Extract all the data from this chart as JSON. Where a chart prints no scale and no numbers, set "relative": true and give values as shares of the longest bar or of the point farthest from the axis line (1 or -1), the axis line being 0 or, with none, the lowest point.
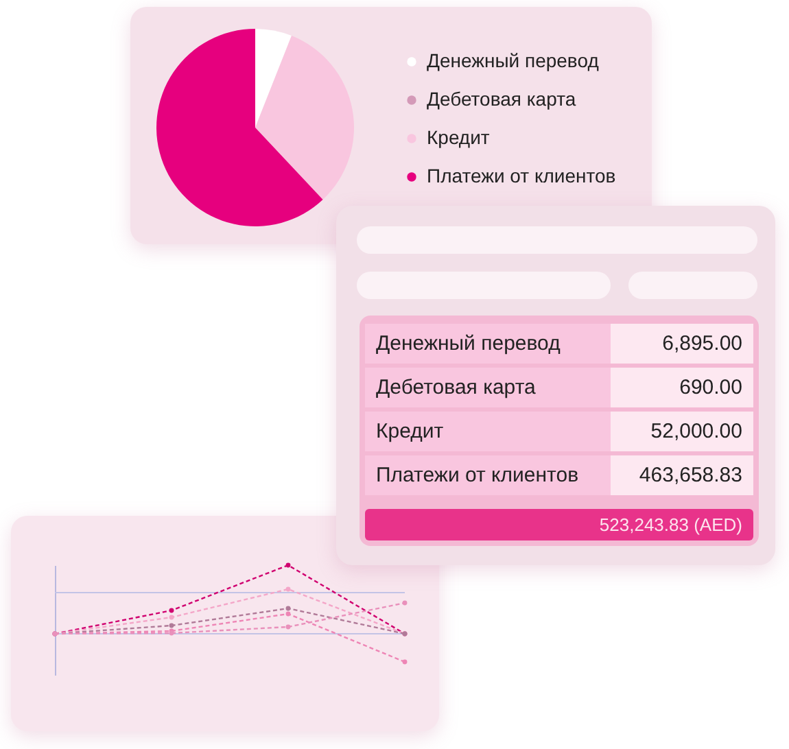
{
  "chart_data": [
    {
      "type": "pie",
      "categories": [
        "Денежный перевод",
        "Дебетовая карта",
        "Кредит",
        "Платежи от клиентов"
      ],
      "values": [
        6,
        0,
        32,
        62
      ],
      "colors": [
        "#ffffff",
        "#d49ab8",
        "#f9c6df",
        "#e6007e"
      ],
      "legend": "right"
    },
    {
      "type": "other",
      "categories": [
        "Денежный перевод",
        "Дебетовая карта",
        "Кредит",
        "Платежи от клиентов"
      ],
      "values": [
        6895.0,
        690.0,
        52000.0,
        463658.83
      ],
      "value_labels": [
        "6,895.00",
        "690.00",
        "52,000.00",
        "463,658.83"
      ],
      "annotations": [
        "523,243.83 (AED)"
      ]
    },
    {
      "type": "line",
      "relative": true,
      "categories": [
        null,
        null,
        null,
        null
      ],
      "line_style": "dashed",
      "marker": "circle",
      "legend": false,
      "ref_lines": [
        {
          "axis": "y",
          "value": 0.6,
          "color": "#c3c3e6"
        }
      ],
      "series": [
        {
          "color": "#d0006f",
          "values": [
            0,
            0.34,
            1,
            0
          ]
        },
        {
          "color": "#f4a6c8",
          "values": [
            0,
            0.24,
            0.65,
            0
          ]
        },
        {
          "color": "#b07a98",
          "values": [
            0,
            0.12,
            0.37,
            0
          ]
        },
        {
          "color": "#ee85b5",
          "values": [
            0,
            0.04,
            0.29,
            -0.41
          ]
        },
        {
          "color": "#e990bb",
          "values": [
            0,
            0.01,
            0.1,
            0.45
          ]
        }
      ]
    }
  ]
}
